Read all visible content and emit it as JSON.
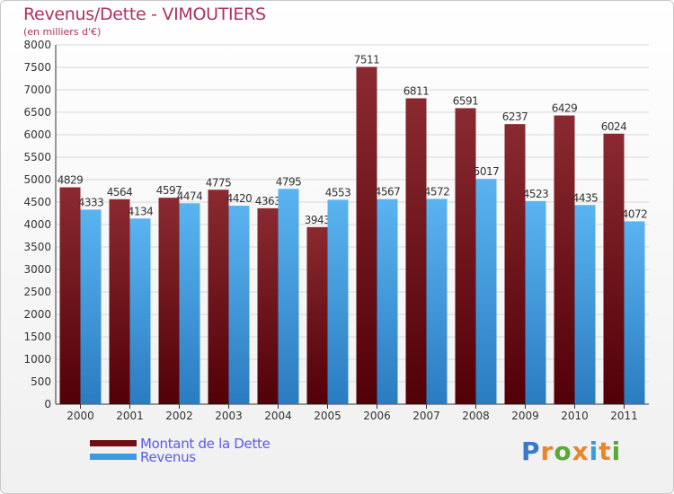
{
  "header": {
    "title": "Revenus/Dette - VIMOUTIERS",
    "subtitle": "(en milliers d'€)"
  },
  "chart_data": {
    "type": "bar",
    "categories": [
      "2000",
      "2001",
      "2002",
      "2003",
      "2004",
      "2005",
      "2006",
      "2007",
      "2008",
      "2009",
      "2010",
      "2011"
    ],
    "series": [
      {
        "name": "Montant de la Dette",
        "color": "#7a1a1f",
        "values": [
          4829,
          4564,
          4597,
          4775,
          4363,
          3943,
          7511,
          6811,
          6591,
          6237,
          6429,
          6024
        ]
      },
      {
        "name": "Revenus",
        "color": "#3a9be0",
        "values": [
          4333,
          4134,
          4474,
          4420,
          4795,
          4553,
          4567,
          4572,
          5017,
          4523,
          4435,
          4072
        ]
      }
    ],
    "ylim": [
      0,
      8000
    ],
    "ytick_step": 500,
    "grid": true
  },
  "legend": {
    "items": [
      {
        "label": "Montant de la Dette",
        "color": "#6e0f14"
      },
      {
        "label": "Revenus",
        "color": "#3a9be0"
      }
    ]
  },
  "logo": {
    "letters": [
      "P",
      "r",
      "o",
      "x",
      "i",
      "t",
      "i"
    ],
    "colors": [
      "#3a78c8",
      "#e8862a",
      "#5aa83a",
      "#e8862a",
      "#3a9be0",
      "#e8862a",
      "#5aa83a"
    ]
  }
}
